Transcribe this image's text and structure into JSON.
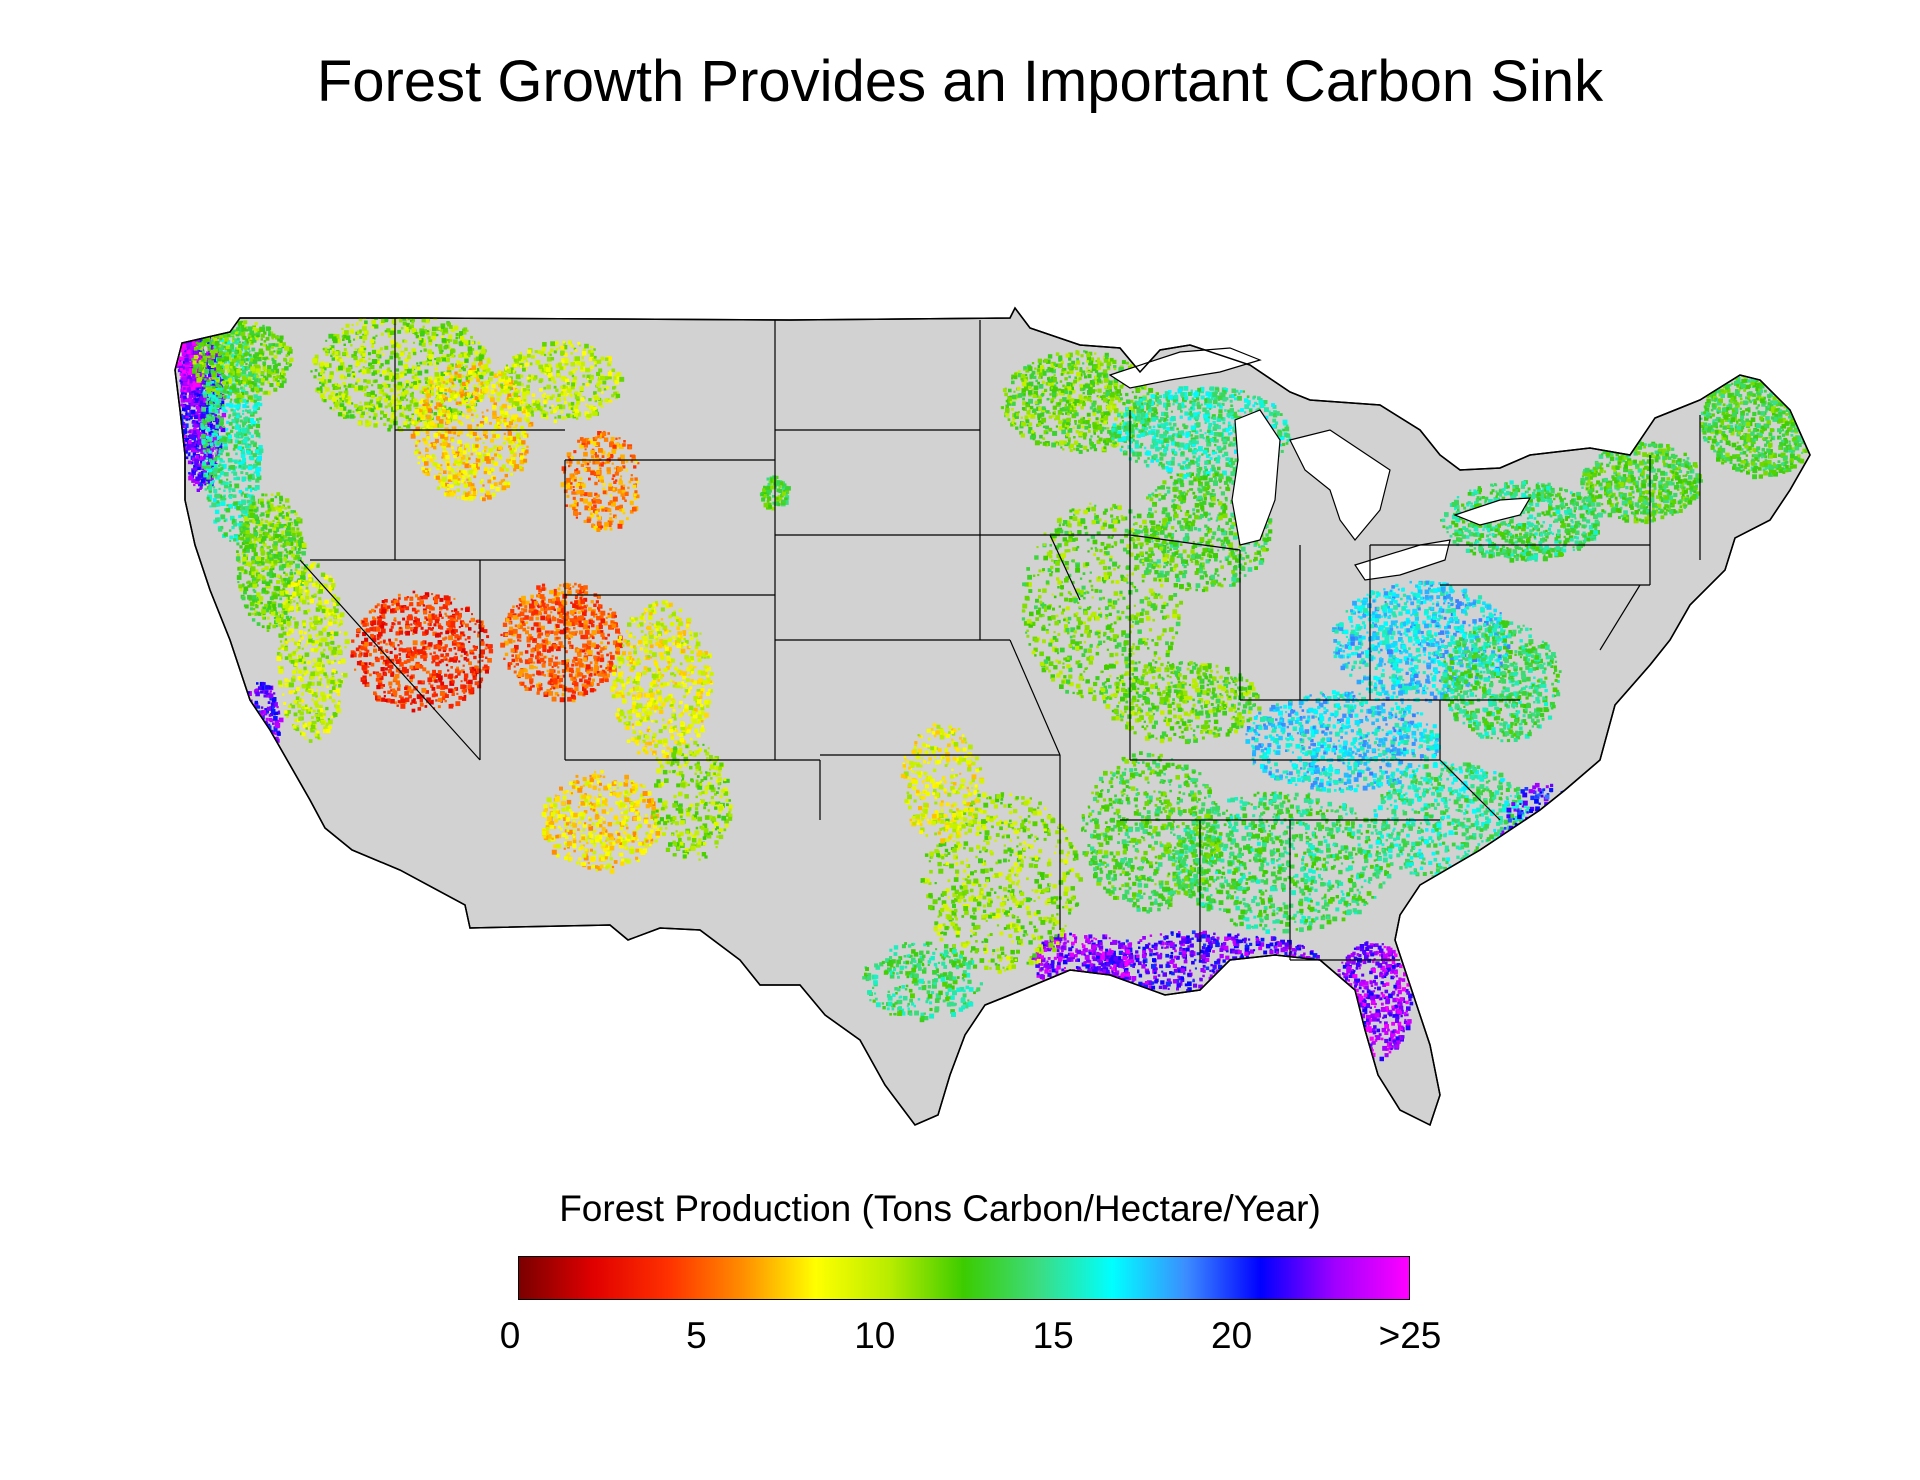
{
  "title": "Forest Growth Provides an Important Carbon Sink",
  "map": {
    "subject": "Contiguous United States",
    "land_color": "#d2d2d2",
    "water_color": "#ffffff",
    "border_color": "#000000"
  },
  "legend": {
    "title": "Forest Production (Tons Carbon/Hectare/Year)",
    "tick_labels": [
      "0",
      "5",
      "10",
      "15",
      "20",
      ">25"
    ],
    "tick_values": [
      0,
      5,
      10,
      15,
      20,
      25
    ],
    "range": [
      0,
      25
    ],
    "colors": [
      "#7a0000",
      "#e00000",
      "#ff3000",
      "#ff8c00",
      "#ffff00",
      "#b8ec00",
      "#3ccc00",
      "#3cdc80",
      "#00ffff",
      "#3c8cff",
      "#0000ff",
      "#a000ff",
      "#ff00ff"
    ]
  }
}
